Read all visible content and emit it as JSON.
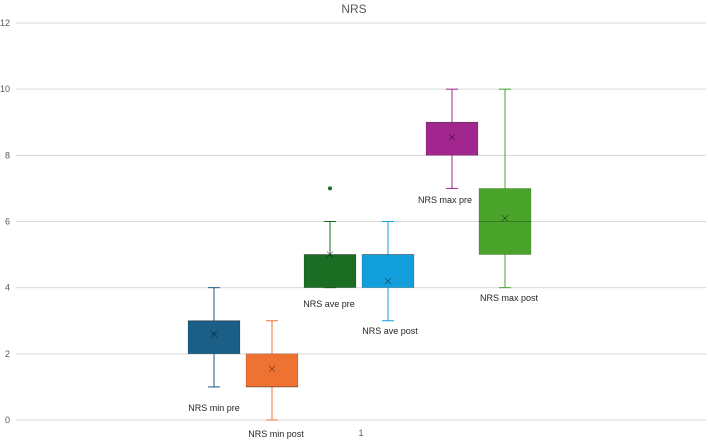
{
  "chart_data": {
    "type": "box",
    "title": "NRS",
    "xlabel": "",
    "ylabel": "",
    "ylim": [
      0,
      12
    ],
    "yticks": [
      "0",
      "2",
      "4",
      "6",
      "8",
      "10",
      "12"
    ],
    "categories": [
      "1"
    ],
    "grid": true,
    "series": [
      {
        "name": "NRS min pre",
        "color": "#1b5e86",
        "min": 1,
        "q1": 2,
        "median": 3,
        "q3": 3,
        "max": 4,
        "mean": 2.6,
        "outliers": []
      },
      {
        "name": "NRS min post",
        "color": "#ee7232",
        "min": 0,
        "q1": 1,
        "median": 1,
        "q3": 2,
        "max": 3,
        "mean": 1.55,
        "outliers": []
      },
      {
        "name": "NRS ave pre",
        "color": "#1a6e24",
        "min": 4,
        "q1": 4,
        "median": 5,
        "q3": 5,
        "max": 6,
        "mean": 5.0,
        "outliers": [
          7
        ]
      },
      {
        "name": "NRS ave post",
        "color": "#139fdc",
        "min": 3,
        "q1": 4,
        "median": 5,
        "q3": 5,
        "max": 6,
        "mean": 4.2,
        "outliers": []
      },
      {
        "name": "NRS max pre",
        "color": "#a1278f",
        "min": 7,
        "q1": 8,
        "median": 9,
        "q3": 9,
        "max": 10,
        "mean": 8.55,
        "outliers": []
      },
      {
        "name": "NRS max post",
        "color": "#4aa42c",
        "min": 4,
        "q1": 5,
        "median": 6,
        "q3": 7,
        "max": 10,
        "mean": 6.1,
        "outliers": []
      }
    ]
  }
}
